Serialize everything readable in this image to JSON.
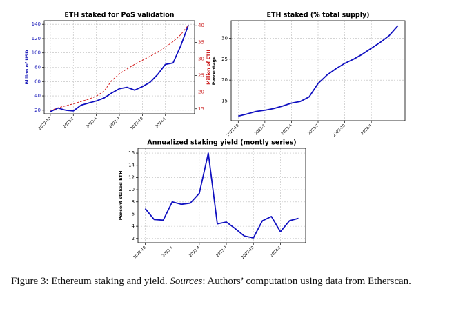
{
  "chart_data": [
    {
      "type": "line",
      "title": "ETH staked for PoS validation",
      "x": [
        "2022-10",
        "2022-11",
        "2022-12",
        "2023-1",
        "2023-2",
        "2023-3",
        "2023-4",
        "2023-5",
        "2023-6",
        "2023-7",
        "2023-8",
        "2023-9",
        "2023-10",
        "2023-11",
        "2023-12",
        "2024-1",
        "2024-2",
        "2024-3",
        "2024-4"
      ],
      "xticks": [
        "2022-10",
        "2023-1",
        "2023-4",
        "2023-7",
        "2023-10",
        "2024-1"
      ],
      "ylabel": "Billion of USD",
      "y2label": "Million of ETH",
      "ylim": [
        15,
        145
      ],
      "yticks": [
        20,
        40,
        60,
        80,
        100,
        120,
        140
      ],
      "y2lim": [
        13.5,
        41.5
      ],
      "y2ticks": [
        15,
        20,
        25,
        30,
        35,
        40
      ],
      "ycolor": "#2222bb",
      "y2color": "#cc2222",
      "grid": true,
      "series": [
        {
          "name": "Billion of USD",
          "color": "#1010c0",
          "linestyle": "solid",
          "values": [
            18,
            23,
            20,
            19,
            27,
            30,
            33,
            37,
            44,
            50,
            52,
            48,
            53,
            59,
            70,
            84,
            86,
            110,
            139
          ]
        },
        {
          "name": "Million of ETH",
          "color": "#d42020",
          "linestyle": "dashed",
          "axis": "y2",
          "values": [
            14.5,
            15.3,
            15.9,
            16.5,
            17.2,
            17.9,
            18.8,
            20.3,
            23.5,
            25.5,
            27,
            28.4,
            29.6,
            30.8,
            32.1,
            33.6,
            35.2,
            37.3,
            40.2
          ]
        }
      ]
    },
    {
      "type": "line",
      "title": "ETH staked (% total supply)",
      "x": [
        "2022-10",
        "2022-11",
        "2022-12",
        "2023-1",
        "2023-2",
        "2023-3",
        "2023-4",
        "2023-5",
        "2023-6",
        "2023-7",
        "2023-8",
        "2023-9",
        "2023-10",
        "2023-11",
        "2023-12",
        "2024-1",
        "2024-2",
        "2024-3",
        "2024-4"
      ],
      "xticks": [
        "2022-10",
        "2023-1",
        "2023-4",
        "2023-7",
        "2023-10",
        "2024-1"
      ],
      "ylabel": "Percentage",
      "ylim": [
        10.3,
        34.2
      ],
      "yticks": [
        15,
        20,
        25,
        30
      ],
      "grid": true,
      "series": [
        {
          "name": "Percentage",
          "color": "#1010c0",
          "linestyle": "solid",
          "values": [
            11.4,
            11.9,
            12.5,
            12.8,
            13.2,
            13.8,
            14.5,
            14.9,
            16.0,
            19.2,
            21.2,
            22.7,
            24.0,
            25.0,
            26.2,
            27.6,
            29.0,
            30.6,
            33.0
          ]
        }
      ]
    },
    {
      "type": "line",
      "title": "Annualized staking yield (montly series)",
      "x": [
        "2022-10",
        "2022-11",
        "2022-12",
        "2023-1",
        "2023-2",
        "2023-3",
        "2023-4",
        "2023-5",
        "2023-6",
        "2023-7",
        "2023-8",
        "2023-9",
        "2023-10",
        "2023-11",
        "2023-12",
        "2024-1",
        "2024-2",
        "2024-3"
      ],
      "xticks": [
        "2022-10",
        "2023-1",
        "2023-4",
        "2023-7",
        "2023-10",
        "2024-1"
      ],
      "ylabel": "Percent staked ETH",
      "ylim": [
        1.3,
        16.8
      ],
      "yticks": [
        2,
        4,
        6,
        8,
        10,
        12,
        14,
        16
      ],
      "grid": true,
      "series": [
        {
          "name": "Percent staked ETH",
          "color": "#1010c0",
          "linestyle": "solid",
          "values": [
            6.9,
            5.1,
            5.0,
            8.0,
            7.6,
            7.8,
            9.4,
            16.0,
            4.4,
            4.7,
            3.6,
            2.4,
            2.1,
            4.9,
            5.6,
            3.1,
            4.9,
            5.3
          ]
        }
      ]
    }
  ],
  "caption": {
    "label": "Figure 3:",
    "text": "Ethereum staking and yield.",
    "sources_label": "Sources",
    "sources_text": ": Authors’ computation using data from Etherscan."
  }
}
